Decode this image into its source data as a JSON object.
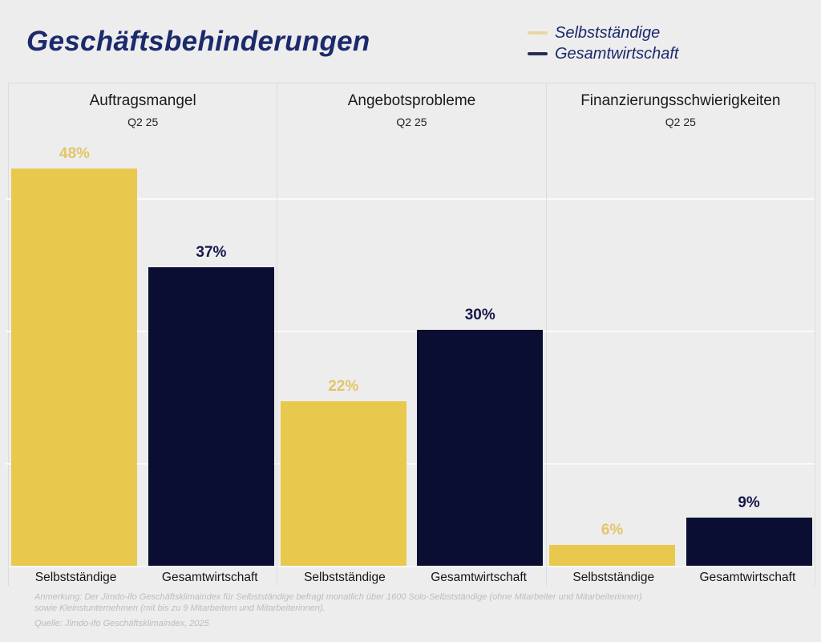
{
  "title": "Geschäftsbehinderungen",
  "legend": [
    {
      "label": "Selbstständige",
      "swatch_color": "#e9d6a0"
    },
    {
      "label": "Gesamtwirtschaft",
      "swatch_color": "#272c52"
    }
  ],
  "chart_data": {
    "type": "bar",
    "title": "Geschäftsbehinderungen",
    "legend_position": "top-right",
    "grid": true,
    "value_suffix": "%",
    "series": [
      {
        "name": "Selbstständige",
        "bar_color": "#e9c84e",
        "label_color": "#e3c668"
      },
      {
        "name": "Gesamtwirtschaft",
        "bar_color": "#0b0e33",
        "label_color": "#15184a"
      }
    ],
    "panels": [
      {
        "title": "Auftragsmangel",
        "subtitle": "Q2 25",
        "categories": [
          "Selbstständige",
          "Gesamtwirtschaft"
        ],
        "values": [
          48,
          37
        ]
      },
      {
        "title": "Angebotsprobleme",
        "subtitle": "Q2 25",
        "categories": [
          "Selbstständige",
          "Gesamtwirtschaft"
        ],
        "values": [
          22,
          30
        ]
      },
      {
        "title": "Finanzierungsschwierigkeiten",
        "subtitle": "Q2 25",
        "categories": [
          "Selbstständige",
          "Gesamtwirtschaft"
        ],
        "values": [
          6,
          9
        ]
      }
    ]
  },
  "footer": {
    "note_line1": "Anmerkung: Der Jimdo-ifo Geschäftsklimaindex für Selbstständige befragt monatlich über 1600 Solo-Selbstständige (ohne Mitarbeiter und Mitarbeiterinnen)",
    "note_line2": "sowie Kleinstunternehmen (mit bis zu 9 Mitarbeitern und Mitarbeiterinnen).",
    "source": "Quelle: Jimdo-ifo Geschäftsklimaindex, 2025"
  }
}
